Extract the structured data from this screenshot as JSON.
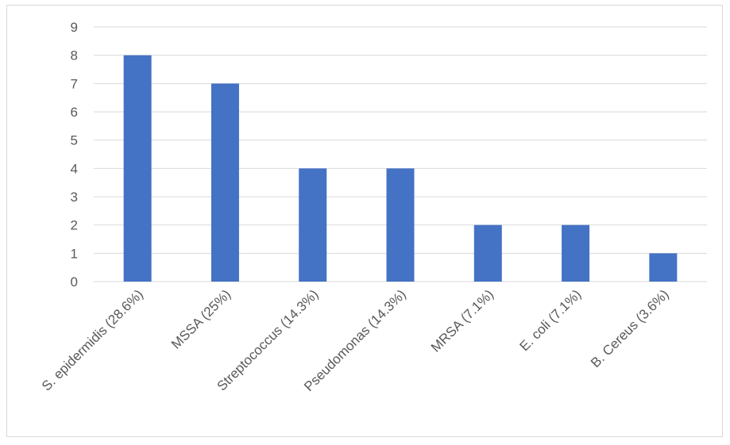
{
  "chart_data": {
    "type": "bar",
    "title": "",
    "xlabel": "",
    "ylabel": "",
    "categories": [
      "S. epidermidis (28.6%)",
      "MSSA (25%)",
      "Streptococcus (14.3%)",
      "Pseudomonas (14.3%)",
      "MRSA (7.1%)",
      "E. coli (7.1%)",
      "B. Cereus (3.6%)"
    ],
    "values": [
      8,
      7,
      4,
      4,
      2,
      2,
      1
    ],
    "ylim": [
      0,
      9
    ],
    "yticks": [
      "0",
      "1",
      "2",
      "3",
      "4",
      "5",
      "6",
      "7",
      "8",
      "9"
    ],
    "grid": true,
    "legend": "none",
    "bar_color": "#4472c4",
    "grid_color": "#d9d9d9"
  }
}
